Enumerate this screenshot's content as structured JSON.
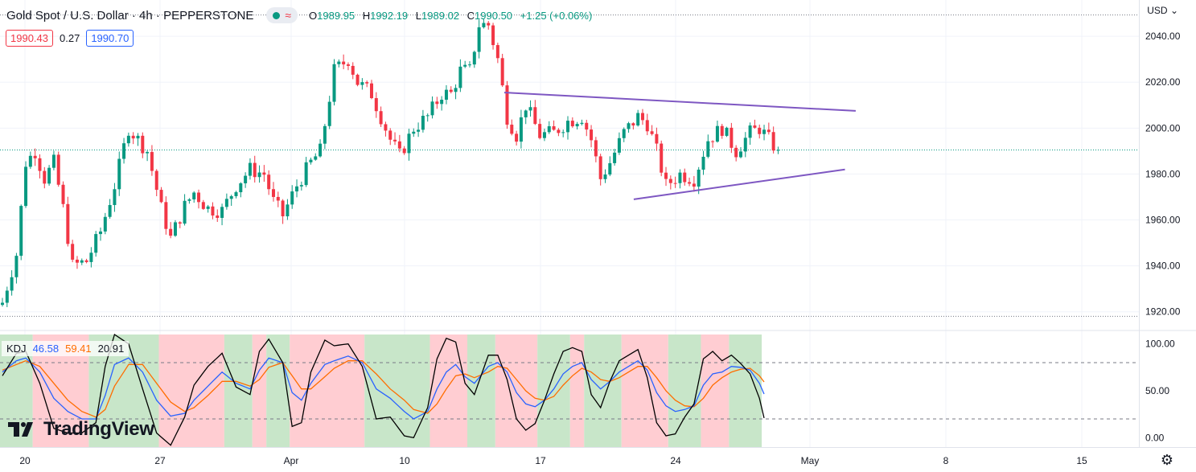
{
  "header": {
    "title": "Gold Spot / U.S. Dollar · 4h · PEPPERSTONE",
    "wave_glyph": "≈",
    "ohlc": [
      {
        "k": "O",
        "v": "1989.95"
      },
      {
        "k": "H",
        "v": "1992.19"
      },
      {
        "k": "L",
        "v": "1989.02"
      },
      {
        "k": "C",
        "v": "1990.50"
      }
    ],
    "change": "+1.25 (+0.06%)"
  },
  "prices": {
    "bid": "1990.43",
    "spread": "0.27",
    "ask": "1990.70"
  },
  "currency": "USD",
  "kdj_legend": {
    "name": "KDJ",
    "k": "46.58",
    "d": "59.41",
    "j": "20.91"
  },
  "logo": {
    "text": "TradingView"
  },
  "colors": {
    "up": "#089981",
    "down": "#f23645",
    "trendline": "#7e57c2",
    "k_line": "#2962ff",
    "d_line": "#ff6d00",
    "j_line": "#000000",
    "band_up": "#c8e6c9",
    "band_down": "#ffcdd2"
  },
  "chart_data": [
    {
      "type": "candlestick",
      "title": "Gold Spot / U.S. Dollar · 4h · PEPPERSTONE",
      "ylim": [
        1915,
        2053
      ],
      "yticks": [
        "2040.00",
        "2020.00",
        "2000.00",
        "1980.00",
        "1960.00",
        "1940.00",
        "1920.00"
      ],
      "x_labels": [
        "20",
        "27",
        "Apr",
        "10",
        "17",
        "24",
        "May",
        "8",
        "15"
      ],
      "current_price": 1990.5,
      "session_high_line": 2049.3,
      "waypoints": [
        [
          0,
          1924
        ],
        [
          3,
          1945
        ],
        [
          5,
          1985
        ],
        [
          7,
          1990
        ],
        [
          9,
          1978
        ],
        [
          11,
          1985
        ],
        [
          13,
          1965
        ],
        [
          15,
          1940
        ],
        [
          18,
          1942
        ],
        [
          21,
          1955
        ],
        [
          24,
          1975
        ],
        [
          27,
          2000
        ],
        [
          29,
          1995
        ],
        [
          31,
          1990
        ],
        [
          34,
          1965
        ],
        [
          36,
          1952
        ],
        [
          39,
          1966
        ],
        [
          41,
          1972
        ],
        [
          44,
          1965
        ],
        [
          47,
          1964
        ],
        [
          50,
          1975
        ],
        [
          53,
          1982
        ],
        [
          56,
          1980
        ],
        [
          58,
          1968
        ],
        [
          60,
          1962
        ],
        [
          63,
          1975
        ],
        [
          66,
          1985
        ],
        [
          68,
          1990
        ],
        [
          71,
          2025
        ],
        [
          74,
          2030
        ],
        [
          76,
          2020
        ],
        [
          79,
          2015
        ],
        [
          81,
          2005
        ],
        [
          83,
          1995
        ],
        [
          85,
          1988
        ],
        [
          88,
          2000
        ],
        [
          91,
          2005
        ],
        [
          94,
          2015
        ],
        [
          96,
          2015
        ],
        [
          98,
          2025
        ],
        [
          100,
          2025
        ],
        [
          102,
          2045
        ],
        [
          104,
          2045
        ],
        [
          106,
          2030
        ],
        [
          108,
          2005
        ],
        [
          110,
          1997
        ],
        [
          112,
          2010
        ],
        [
          115,
          1997
        ],
        [
          118,
          1998
        ],
        [
          121,
          2003
        ],
        [
          124,
          2005
        ],
        [
          126,
          1995
        ],
        [
          128,
          1978
        ],
        [
          130,
          1985
        ],
        [
          133,
          1998
        ],
        [
          136,
          2005
        ],
        [
          138,
          2002
        ],
        [
          140,
          1990
        ],
        [
          142,
          1975
        ],
        [
          145,
          1980
        ],
        [
          148,
          1978
        ],
        [
          151,
          1995
        ],
        [
          154,
          2000
        ],
        [
          157,
          1990
        ],
        [
          160,
          1998
        ],
        [
          162,
          2000
        ],
        [
          164,
          1995
        ],
        [
          166,
          1990
        ]
      ],
      "trendlines": [
        {
          "from": {
            "x": 107.4,
            "y": 2015.5
          },
          "to": {
            "x": 182.6,
            "y": 2007.5
          }
        },
        {
          "from": {
            "x": 135.1,
            "y": 1969
          },
          "to": {
            "x": 180.3,
            "y": 1982
          }
        }
      ]
    },
    {
      "type": "line",
      "name": "KDJ",
      "ylim": [
        -10,
        110
      ],
      "yticks": [
        "100.00",
        "50.00",
        "0.00"
      ],
      "levels": [
        80,
        20
      ],
      "k_last": 46.58,
      "d_last": 59.41,
      "j_last": 20.91,
      "k_waypoints": [
        [
          0,
          70
        ],
        [
          3,
          82
        ],
        [
          5,
          85
        ],
        [
          8,
          70
        ],
        [
          11,
          42
        ],
        [
          14,
          28
        ],
        [
          17,
          20
        ],
        [
          20,
          20
        ],
        [
          22,
          45
        ],
        [
          24,
          78
        ],
        [
          27,
          85
        ],
        [
          30,
          70
        ],
        [
          33,
          40
        ],
        [
          36,
          23
        ],
        [
          39,
          26
        ],
        [
          41,
          40
        ],
        [
          44,
          55
        ],
        [
          47,
          70
        ],
        [
          50,
          58
        ],
        [
          53,
          52
        ],
        [
          55,
          72
        ],
        [
          57,
          85
        ],
        [
          60,
          80
        ],
        [
          62,
          48
        ],
        [
          64,
          40
        ],
        [
          66,
          58
        ],
        [
          69,
          78
        ],
        [
          71,
          82
        ],
        [
          74,
          87
        ],
        [
          77,
          80
        ],
        [
          80,
          52
        ],
        [
          83,
          42
        ],
        [
          86,
          28
        ],
        [
          88,
          20
        ],
        [
          91,
          28
        ],
        [
          93,
          52
        ],
        [
          95,
          70
        ],
        [
          97,
          78
        ],
        [
          99,
          65
        ],
        [
          101,
          58
        ],
        [
          104,
          76
        ],
        [
          106,
          80
        ],
        [
          108,
          70
        ],
        [
          110,
          48
        ],
        [
          112,
          36
        ],
        [
          114,
          33
        ],
        [
          116,
          40
        ],
        [
          118,
          52
        ],
        [
          120,
          68
        ],
        [
          122,
          76
        ],
        [
          124,
          80
        ],
        [
          126,
          62
        ],
        [
          128,
          52
        ],
        [
          130,
          60
        ],
        [
          132,
          70
        ],
        [
          134,
          76
        ],
        [
          136,
          82
        ],
        [
          138,
          72
        ],
        [
          140,
          48
        ],
        [
          142,
          34
        ],
        [
          144,
          28
        ],
        [
          146,
          30
        ],
        [
          148,
          34
        ],
        [
          150,
          56
        ],
        [
          152,
          68
        ],
        [
          154,
          70
        ],
        [
          156,
          76
        ],
        [
          158,
          75
        ],
        [
          160,
          72
        ],
        [
          162,
          58
        ],
        [
          163,
          46.58
        ]
      ],
      "d_waypoints": [
        [
          0,
          72
        ],
        [
          3,
          78
        ],
        [
          5,
          82
        ],
        [
          8,
          76
        ],
        [
          11,
          58
        ],
        [
          14,
          40
        ],
        [
          17,
          28
        ],
        [
          20,
          22
        ],
        [
          22,
          30
        ],
        [
          24,
          55
        ],
        [
          27,
          78
        ],
        [
          30,
          78
        ],
        [
          33,
          58
        ],
        [
          36,
          38
        ],
        [
          39,
          28
        ],
        [
          41,
          32
        ],
        [
          44,
          45
        ],
        [
          47,
          60
        ],
        [
          50,
          60
        ],
        [
          53,
          55
        ],
        [
          55,
          62
        ],
        [
          57,
          75
        ],
        [
          60,
          80
        ],
        [
          62,
          66
        ],
        [
          64,
          52
        ],
        [
          66,
          52
        ],
        [
          69,
          65
        ],
        [
          71,
          74
        ],
        [
          74,
          82
        ],
        [
          77,
          82
        ],
        [
          80,
          68
        ],
        [
          83,
          52
        ],
        [
          86,
          40
        ],
        [
          88,
          30
        ],
        [
          91,
          26
        ],
        [
          93,
          36
        ],
        [
          95,
          52
        ],
        [
          97,
          66
        ],
        [
          99,
          68
        ],
        [
          101,
          64
        ],
        [
          104,
          70
        ],
        [
          106,
          76
        ],
        [
          108,
          74
        ],
        [
          110,
          62
        ],
        [
          112,
          50
        ],
        [
          114,
          42
        ],
        [
          116,
          40
        ],
        [
          118,
          44
        ],
        [
          120,
          56
        ],
        [
          122,
          66
        ],
        [
          124,
          74
        ],
        [
          126,
          70
        ],
        [
          128,
          62
        ],
        [
          130,
          60
        ],
        [
          132,
          64
        ],
        [
          134,
          70
        ],
        [
          136,
          76
        ],
        [
          138,
          76
        ],
        [
          140,
          64
        ],
        [
          142,
          50
        ],
        [
          144,
          40
        ],
        [
          146,
          34
        ],
        [
          148,
          33
        ],
        [
          150,
          42
        ],
        [
          152,
          56
        ],
        [
          154,
          64
        ],
        [
          156,
          70
        ],
        [
          158,
          73
        ],
        [
          160,
          74
        ],
        [
          162,
          66
        ],
        [
          163,
          59.41
        ]
      ],
      "j_waypoints": [
        [
          0,
          66
        ],
        [
          3,
          90
        ],
        [
          5,
          92
        ],
        [
          8,
          58
        ],
        [
          11,
          10
        ],
        [
          14,
          5
        ],
        [
          17,
          5
        ],
        [
          20,
          16
        ],
        [
          22,
          76
        ],
        [
          24,
          110
        ],
        [
          27,
          100
        ],
        [
          30,
          52
        ],
        [
          33,
          5
        ],
        [
          36,
          -8
        ],
        [
          39,
          22
        ],
        [
          41,
          56
        ],
        [
          44,
          76
        ],
        [
          47,
          90
        ],
        [
          50,
          54
        ],
        [
          53,
          46
        ],
        [
          55,
          92
        ],
        [
          57,
          105
        ],
        [
          60,
          80
        ],
        [
          62,
          12
        ],
        [
          64,
          16
        ],
        [
          66,
          70
        ],
        [
          69,
          104
        ],
        [
          71,
          98
        ],
        [
          74,
          100
        ],
        [
          77,
          76
        ],
        [
          80,
          20
        ],
        [
          83,
          22
        ],
        [
          86,
          2
        ],
        [
          88,
          0
        ],
        [
          91,
          32
        ],
        [
          93,
          84
        ],
        [
          95,
          106
        ],
        [
          97,
          102
        ],
        [
          99,
          58
        ],
        [
          101,
          46
        ],
        [
          104,
          88
        ],
        [
          106,
          88
        ],
        [
          108,
          62
        ],
        [
          110,
          20
        ],
        [
          112,
          8
        ],
        [
          114,
          15
        ],
        [
          116,
          40
        ],
        [
          118,
          68
        ],
        [
          120,
          92
        ],
        [
          122,
          96
        ],
        [
          124,
          92
        ],
        [
          126,
          46
        ],
        [
          128,
          32
        ],
        [
          130,
          60
        ],
        [
          132,
          82
        ],
        [
          134,
          88
        ],
        [
          136,
          94
        ],
        [
          138,
          64
        ],
        [
          140,
          16
        ],
        [
          142,
          2
        ],
        [
          144,
          4
        ],
        [
          146,
          22
        ],
        [
          148,
          36
        ],
        [
          150,
          84
        ],
        [
          152,
          92
        ],
        [
          154,
          82
        ],
        [
          156,
          88
        ],
        [
          158,
          79
        ],
        [
          160,
          68
        ],
        [
          162,
          42
        ],
        [
          163,
          20.91
        ]
      ],
      "band_changes": [
        0,
        7,
        19,
        34,
        48,
        54,
        57,
        62,
        78,
        92,
        100,
        106,
        115,
        122,
        125,
        133,
        143,
        150,
        156,
        163
      ]
    }
  ]
}
